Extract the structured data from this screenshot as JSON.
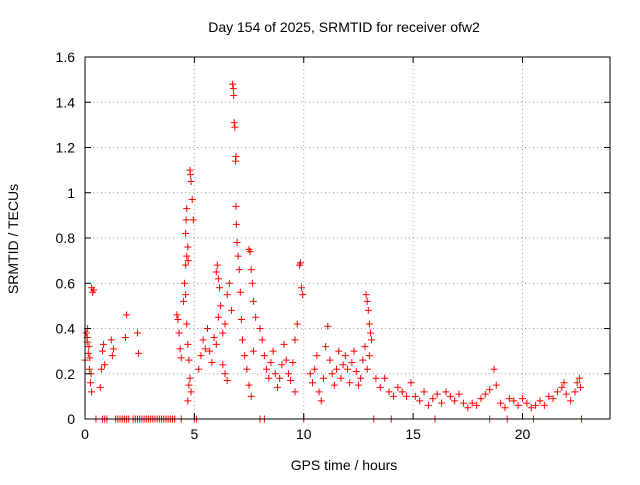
{
  "chart_data": {
    "type": "scatter",
    "title": "Day 154 of 2025, SRMTID for receiver ofw2",
    "xlabel": "GPS time / hours",
    "ylabel": "SRMTID / TECUs",
    "xlim": [
      0,
      24
    ],
    "ylim": [
      0,
      1.6
    ],
    "xticks": [
      0,
      5,
      10,
      15,
      20
    ],
    "xtick_labels": [
      "0",
      "5",
      "10",
      "15",
      "20"
    ],
    "yticks": [
      0,
      0.2,
      0.4,
      0.6,
      0.8,
      1.0,
      1.2,
      1.4,
      1.6
    ],
    "ytick_labels": [
      "0",
      "0.2",
      "0.4",
      "0.6",
      "0.8",
      "1",
      "1.2",
      "1.4",
      "1.6"
    ],
    "grid": true,
    "legend": "none",
    "marker": "+",
    "color": "#ff0000",
    "series": [
      {
        "name": "SRMTID",
        "points": [
          [
            0.0,
            0.26
          ],
          [
            0.05,
            0.38
          ],
          [
            0.1,
            0.34
          ],
          [
            0.15,
            0.29
          ],
          [
            0.2,
            0.22
          ],
          [
            0.25,
            0.16
          ],
          [
            0.3,
            0.12
          ],
          [
            0.1,
            0.36
          ],
          [
            0.12,
            0.4
          ],
          [
            0.18,
            0.32
          ],
          [
            0.22,
            0.27
          ],
          [
            0.28,
            0.2
          ],
          [
            0.3,
            0.58
          ],
          [
            0.35,
            0.56
          ],
          [
            0.4,
            0.57
          ],
          [
            0.7,
            0.14
          ],
          [
            0.75,
            0.22
          ],
          [
            0.8,
            0.3
          ],
          [
            0.85,
            0.33
          ],
          [
            0.9,
            0.24
          ],
          [
            1.2,
            0.35
          ],
          [
            1.25,
            0.28
          ],
          [
            1.3,
            0.31
          ],
          [
            1.9,
            0.46
          ],
          [
            1.85,
            0.36
          ],
          [
            2.4,
            0.38
          ],
          [
            2.45,
            0.29
          ],
          [
            4.2,
            0.46
          ],
          [
            4.25,
            0.44
          ],
          [
            4.3,
            0.38
          ],
          [
            4.35,
            0.31
          ],
          [
            4.4,
            0.27
          ],
          [
            4.5,
            0.52
          ],
          [
            4.55,
            0.6
          ],
          [
            4.6,
            0.55
          ],
          [
            4.65,
            0.42
          ],
          [
            4.7,
            0.33
          ],
          [
            4.75,
            0.26
          ],
          [
            4.8,
            0.18
          ],
          [
            4.85,
            0.12
          ],
          [
            4.6,
            0.82
          ],
          [
            4.62,
            0.88
          ],
          [
            4.65,
            0.93
          ],
          [
            4.7,
            0.76
          ],
          [
            4.72,
            0.7
          ],
          [
            4.8,
            1.1
          ],
          [
            4.82,
            1.08
          ],
          [
            4.85,
            1.05
          ],
          [
            4.9,
            0.97
          ],
          [
            4.95,
            0.88
          ],
          [
            4.6,
            0.68
          ],
          [
            4.65,
            0.72
          ],
          [
            4.7,
            0.08
          ],
          [
            4.75,
            0.15
          ],
          [
            5.2,
            0.22
          ],
          [
            5.3,
            0.28
          ],
          [
            5.4,
            0.35
          ],
          [
            5.5,
            0.31
          ],
          [
            5.6,
            0.4
          ],
          [
            5.7,
            0.3
          ],
          [
            5.8,
            0.25
          ],
          [
            5.9,
            0.36
          ],
          [
            6.0,
            0.33
          ],
          [
            6.1,
            0.45
          ],
          [
            6.2,
            0.5
          ],
          [
            6.3,
            0.38
          ],
          [
            6.4,
            0.42
          ],
          [
            6.5,
            0.55
          ],
          [
            6.6,
            0.6
          ],
          [
            6.7,
            0.48
          ],
          [
            6.0,
            0.65
          ],
          [
            6.05,
            0.68
          ],
          [
            6.1,
            0.62
          ],
          [
            6.15,
            0.58
          ],
          [
            6.3,
            0.24
          ],
          [
            6.4,
            0.2
          ],
          [
            6.5,
            0.17
          ],
          [
            6.75,
            1.48
          ],
          [
            6.78,
            1.46
          ],
          [
            6.8,
            1.43
          ],
          [
            6.82,
            1.31
          ],
          [
            6.85,
            1.29
          ],
          [
            6.9,
            1.16
          ],
          [
            6.88,
            1.14
          ],
          [
            6.9,
            0.94
          ],
          [
            6.92,
            0.86
          ],
          [
            6.95,
            0.78
          ],
          [
            7.0,
            0.72
          ],
          [
            7.05,
            0.66
          ],
          [
            7.1,
            0.56
          ],
          [
            7.15,
            0.44
          ],
          [
            7.2,
            0.35
          ],
          [
            7.3,
            0.28
          ],
          [
            7.4,
            0.22
          ],
          [
            7.5,
            0.15
          ],
          [
            7.6,
            0.1
          ],
          [
            7.7,
            0.3
          ],
          [
            7.8,
            0.45
          ],
          [
            7.5,
            0.75
          ],
          [
            7.55,
            0.74
          ],
          [
            7.6,
            0.66
          ],
          [
            7.65,
            0.6
          ],
          [
            7.7,
            0.52
          ],
          [
            8.0,
            0.4
          ],
          [
            8.1,
            0.35
          ],
          [
            8.2,
            0.28
          ],
          [
            8.3,
            0.22
          ],
          [
            8.4,
            0.18
          ],
          [
            8.5,
            0.25
          ],
          [
            8.6,
            0.3
          ],
          [
            8.7,
            0.2
          ],
          [
            8.8,
            0.14
          ],
          [
            8.9,
            0.18
          ],
          [
            9.0,
            0.24
          ],
          [
            9.1,
            0.33
          ],
          [
            9.2,
            0.26
          ],
          [
            9.3,
            0.2
          ],
          [
            9.4,
            0.17
          ],
          [
            9.5,
            0.25
          ],
          [
            9.6,
            0.35
          ],
          [
            9.7,
            0.42
          ],
          [
            9.8,
            0.68
          ],
          [
            9.85,
            0.69
          ],
          [
            9.9,
            0.58
          ],
          [
            9.95,
            0.55
          ],
          [
            9.6,
            0.12
          ],
          [
            10.3,
            0.2
          ],
          [
            10.4,
            0.16
          ],
          [
            10.5,
            0.22
          ],
          [
            10.6,
            0.28
          ],
          [
            10.7,
            0.12
          ],
          [
            10.8,
            0.08
          ],
          [
            10.9,
            0.18
          ],
          [
            11.0,
            0.32
          ],
          [
            11.1,
            0.41
          ],
          [
            11.2,
            0.26
          ],
          [
            11.3,
            0.2
          ],
          [
            11.4,
            0.15
          ],
          [
            11.5,
            0.22
          ],
          [
            11.6,
            0.3
          ],
          [
            11.7,
            0.18
          ],
          [
            11.8,
            0.24
          ],
          [
            11.9,
            0.28
          ],
          [
            12.0,
            0.22
          ],
          [
            12.1,
            0.16
          ],
          [
            12.2,
            0.25
          ],
          [
            12.3,
            0.3
          ],
          [
            12.4,
            0.21
          ],
          [
            12.5,
            0.15
          ],
          [
            12.6,
            0.18
          ],
          [
            12.7,
            0.26
          ],
          [
            12.8,
            0.32
          ],
          [
            12.9,
            0.22
          ],
          [
            13.0,
            0.28
          ],
          [
            12.85,
            0.55
          ],
          [
            12.9,
            0.52
          ],
          [
            12.95,
            0.48
          ],
          [
            13.0,
            0.42
          ],
          [
            13.05,
            0.38
          ],
          [
            13.1,
            0.35
          ],
          [
            13.3,
            0.18
          ],
          [
            13.5,
            0.14
          ],
          [
            13.7,
            0.18
          ],
          [
            13.9,
            0.12
          ],
          [
            14.1,
            0.1
          ],
          [
            14.3,
            0.14
          ],
          [
            14.5,
            0.12
          ],
          [
            14.7,
            0.1
          ],
          [
            14.9,
            0.16
          ],
          [
            15.1,
            0.1
          ],
          [
            15.3,
            0.08
          ],
          [
            15.5,
            0.12
          ],
          [
            15.7,
            0.06
          ],
          [
            15.9,
            0.09
          ],
          [
            16.1,
            0.11
          ],
          [
            16.3,
            0.07
          ],
          [
            16.5,
            0.12
          ],
          [
            16.7,
            0.1
          ],
          [
            16.9,
            0.08
          ],
          [
            17.1,
            0.11
          ],
          [
            17.3,
            0.07
          ],
          [
            17.5,
            0.05
          ],
          [
            17.7,
            0.07
          ],
          [
            17.9,
            0.06
          ],
          [
            18.1,
            0.09
          ],
          [
            18.3,
            0.11
          ],
          [
            18.5,
            0.13
          ],
          [
            18.7,
            0.22
          ],
          [
            18.8,
            0.15
          ],
          [
            19.0,
            0.07
          ],
          [
            19.2,
            0.05
          ],
          [
            19.4,
            0.09
          ],
          [
            19.6,
            0.08
          ],
          [
            19.8,
            0.06
          ],
          [
            20.0,
            0.09
          ],
          [
            20.2,
            0.07
          ],
          [
            20.4,
            0.05
          ],
          [
            20.6,
            0.06
          ],
          [
            20.8,
            0.08
          ],
          [
            21.0,
            0.06
          ],
          [
            21.2,
            0.1
          ],
          [
            21.4,
            0.09
          ],
          [
            21.6,
            0.12
          ],
          [
            21.8,
            0.14
          ],
          [
            21.9,
            0.16
          ],
          [
            22.0,
            0.11
          ],
          [
            22.2,
            0.08
          ],
          [
            22.4,
            0.12
          ],
          [
            22.5,
            0.16
          ],
          [
            22.6,
            0.18
          ],
          [
            22.65,
            0.14
          ],
          [
            0.5,
            0.0
          ],
          [
            0.8,
            0.0
          ],
          [
            0.9,
            0.0
          ],
          [
            1.0,
            0.0
          ],
          [
            1.4,
            0.0
          ],
          [
            1.5,
            0.0
          ],
          [
            1.6,
            0.0
          ],
          [
            1.7,
            0.0
          ],
          [
            1.8,
            0.0
          ],
          [
            1.9,
            0.0
          ],
          [
            2.0,
            0.0
          ],
          [
            2.2,
            0.0
          ],
          [
            2.3,
            0.0
          ],
          [
            2.4,
            0.0
          ],
          [
            2.5,
            0.0
          ],
          [
            2.6,
            0.0
          ],
          [
            2.7,
            0.0
          ],
          [
            2.8,
            0.0
          ],
          [
            2.9,
            0.0
          ],
          [
            3.0,
            0.0
          ],
          [
            3.1,
            0.0
          ],
          [
            3.2,
            0.0
          ],
          [
            3.3,
            0.0
          ],
          [
            3.4,
            0.0
          ],
          [
            3.5,
            0.0
          ],
          [
            3.6,
            0.0
          ],
          [
            3.7,
            0.0
          ],
          [
            3.8,
            0.0
          ],
          [
            3.9,
            0.0
          ],
          [
            4.0,
            0.0
          ],
          [
            4.1,
            0.0
          ],
          [
            4.4,
            0.0
          ],
          [
            5.0,
            0.0
          ],
          [
            5.1,
            0.0
          ],
          [
            8.0,
            0.0
          ],
          [
            8.2,
            0.0
          ],
          [
            10.0,
            0.0
          ],
          [
            13.2,
            0.0
          ],
          [
            14.0,
            0.0
          ],
          [
            16.0,
            0.0
          ],
          [
            18.5,
            0.0
          ],
          [
            19.3,
            0.0
          ],
          [
            20.5,
            0.0
          ],
          [
            22.7,
            0.0
          ]
        ]
      }
    ]
  }
}
